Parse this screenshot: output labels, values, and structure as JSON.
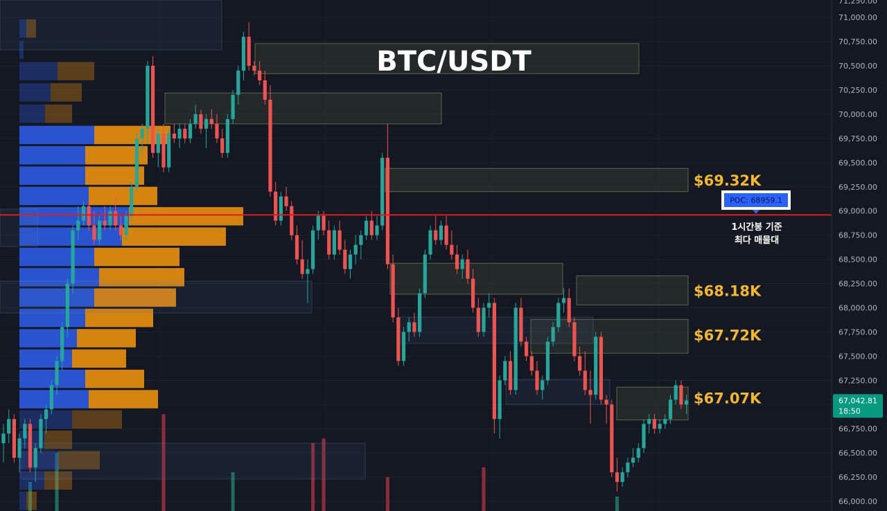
{
  "chart_data": {
    "type": "candlestick",
    "title": "BTC/USDT",
    "ylim": [
      65900,
      71180
    ],
    "price_axis": {
      "ticks": [
        "71,000.00",
        "70,750.00",
        "70,500.00",
        "70,250.00",
        "70,000.00",
        "69,750.00",
        "69,500.00",
        "69,250.00",
        "69,000.00",
        "68,750.00",
        "68,500.00",
        "68,250.00",
        "68,000.00",
        "67,750.00",
        "67,500.00",
        "67,250.00",
        "67,000.00",
        "66,750.00",
        "66,500.00",
        "66,250.00",
        "66,000.00"
      ],
      "tick_values": [
        71000,
        70750,
        70500,
        70250,
        70000,
        69750,
        69500,
        69250,
        69000,
        68750,
        68500,
        68250,
        68000,
        67750,
        67500,
        67250,
        67000,
        66750,
        66500,
        66250,
        66000
      ],
      "top_partial_tick": "71,250.00"
    },
    "current_price": {
      "price": "67,042.81",
      "countdown": "18:50",
      "value": 67042.81,
      "color": "#089981"
    },
    "poc": {
      "label": "POC: 68959.1",
      "value": 68959.1,
      "color": "#2962ff"
    },
    "poc_note": [
      "1시간봉 기준",
      "최다 매물대"
    ],
    "level_labels": [
      {
        "text": "$69.32K",
        "value": 69320
      },
      {
        "text": "$68.18K",
        "value": 68180
      },
      {
        "text": "$67.72K",
        "value": 67720
      },
      {
        "text": "$67.07K",
        "value": 67070
      }
    ],
    "resistance_zones": [
      {
        "name": "zone-70-6k",
        "top": 70730,
        "bottom": 70420
      },
      {
        "name": "zone-70-1k",
        "top": 70220,
        "bottom": 69900
      },
      {
        "name": "zone-69-3k",
        "top": 69440,
        "bottom": 69200
      },
      {
        "name": "zone-68-4k",
        "top": 68460,
        "bottom": 68140
      },
      {
        "name": "zone-68-2k",
        "top": 68330,
        "bottom": 68030
      },
      {
        "name": "zone-67-8k",
        "top": 67880,
        "bottom": 67530
      },
      {
        "name": "zone-67-1k",
        "top": 67180,
        "bottom": 66840
      }
    ],
    "volume_profile": {
      "buy_color": "#2b57d9",
      "sell_color": "#e08a10",
      "rows": [
        {
          "top": 70980,
          "bottom": 70780,
          "buy": 10,
          "sell": 14
        },
        {
          "top": 70760,
          "bottom": 70560,
          "buy": 6,
          "sell": 0
        },
        {
          "top": 70540,
          "bottom": 70340,
          "buy": 55,
          "sell": 53
        },
        {
          "top": 70320,
          "bottom": 70120,
          "buy": 45,
          "sell": 45
        },
        {
          "top": 70100,
          "bottom": 69900,
          "buy": 37,
          "sell": 39
        },
        {
          "top": 69880,
          "bottom": 69680,
          "buy": 108,
          "sell": 110
        },
        {
          "top": 69670,
          "bottom": 69470,
          "buy": 95,
          "sell": 90
        },
        {
          "top": 69460,
          "bottom": 69260,
          "buy": 95,
          "sell": 85
        },
        {
          "top": 69250,
          "bottom": 69050,
          "buy": 100,
          "sell": 99
        },
        {
          "top": 69040,
          "bottom": 68840,
          "buy": 158,
          "sell": 165
        },
        {
          "top": 68830,
          "bottom": 68630,
          "buy": 148,
          "sell": 150
        },
        {
          "top": 68620,
          "bottom": 68420,
          "buy": 108,
          "sell": 123
        },
        {
          "top": 68410,
          "bottom": 68210,
          "buy": 115,
          "sell": 123
        },
        {
          "top": 68200,
          "bottom": 68000,
          "buy": 108,
          "sell": 118
        },
        {
          "top": 67990,
          "bottom": 67790,
          "buy": 95,
          "sell": 98
        },
        {
          "top": 67780,
          "bottom": 67580,
          "buy": 83,
          "sell": 85
        },
        {
          "top": 67570,
          "bottom": 67370,
          "buy": 76,
          "sell": 78
        },
        {
          "top": 67360,
          "bottom": 67160,
          "buy": 95,
          "sell": 85
        },
        {
          "top": 67150,
          "bottom": 66950,
          "buy": 100,
          "sell": 100
        },
        {
          "top": 66940,
          "bottom": 66740,
          "buy": 76,
          "sell": 72
        },
        {
          "top": 66730,
          "bottom": 66530,
          "buy": 36,
          "sell": 40
        },
        {
          "top": 66520,
          "bottom": 66320,
          "buy": 56,
          "sell": 60
        },
        {
          "top": 66310,
          "bottom": 66110,
          "buy": 36,
          "sell": 40
        },
        {
          "top": 66100,
          "bottom": 65900,
          "buy": 10,
          "sell": 15
        }
      ]
    },
    "candles": [
      [
        66600,
        66800,
        66400,
        66700
      ],
      [
        66700,
        66950,
        66600,
        66850
      ],
      [
        66850,
        66900,
        66400,
        66450
      ],
      [
        66450,
        66700,
        66300,
        66650
      ],
      [
        66650,
        66850,
        66550,
        66800
      ],
      [
        66800,
        66850,
        66300,
        66350
      ],
      [
        66350,
        66600,
        66200,
        66550
      ],
      [
        66550,
        66900,
        66500,
        66850
      ],
      [
        66850,
        67000,
        66700,
        66950
      ],
      [
        66950,
        67250,
        66900,
        67200
      ],
      [
        67200,
        67500,
        67100,
        67450
      ],
      [
        67450,
        67850,
        67350,
        67800
      ],
      [
        67800,
        68300,
        67700,
        68250
      ],
      [
        68250,
        68850,
        68150,
        68800
      ],
      [
        68800,
        69050,
        68700,
        68900
      ],
      [
        68900,
        69100,
        68850,
        69050
      ],
      [
        69050,
        69100,
        68800,
        68850
      ],
      [
        68850,
        69000,
        68650,
        68700
      ],
      [
        68700,
        68950,
        68650,
        68900
      ],
      [
        68900,
        69050,
        68800,
        68850
      ],
      [
        68850,
        69050,
        68800,
        69000
      ],
      [
        69000,
        69150,
        68800,
        68850
      ],
      [
        68850,
        68950,
        68700,
        68750
      ],
      [
        68750,
        69000,
        68700,
        68950
      ],
      [
        68950,
        69300,
        68900,
        69250
      ],
      [
        69250,
        69800,
        69200,
        69750
      ],
      [
        69750,
        69900,
        69600,
        69850
      ],
      [
        69850,
        70550,
        69700,
        70500
      ],
      [
        70500,
        70600,
        69550,
        69600
      ],
      [
        69600,
        69850,
        69450,
        69800
      ],
      [
        69800,
        69900,
        69400,
        69450
      ],
      [
        69450,
        69850,
        69400,
        69800
      ],
      [
        69800,
        69900,
        69700,
        69750
      ],
      [
        69750,
        69900,
        69650,
        69850
      ],
      [
        69850,
        69900,
        69700,
        69750
      ],
      [
        69750,
        69950,
        69700,
        69900
      ],
      [
        69900,
        70100,
        69850,
        70000
      ],
      [
        70000,
        70050,
        69800,
        69850
      ],
      [
        69850,
        70000,
        69650,
        69950
      ],
      [
        69950,
        70050,
        69850,
        69900
      ],
      [
        69900,
        70000,
        69700,
        69750
      ],
      [
        69750,
        69850,
        69550,
        69600
      ],
      [
        69600,
        70000,
        69550,
        69950
      ],
      [
        69950,
        70250,
        69900,
        70200
      ],
      [
        70200,
        70500,
        70100,
        70450
      ],
      [
        70450,
        70850,
        70350,
        70800
      ],
      [
        70800,
        70950,
        70450,
        70500
      ],
      [
        70500,
        70550,
        70400,
        70450
      ],
      [
        70450,
        70550,
        70300,
        70350
      ],
      [
        70350,
        70450,
        70100,
        70150
      ],
      [
        70150,
        70300,
        69150,
        69200
      ],
      [
        69200,
        69300,
        68850,
        68900
      ],
      [
        68900,
        69200,
        68850,
        69150
      ],
      [
        69150,
        69250,
        69000,
        69050
      ],
      [
        69050,
        69100,
        68700,
        68750
      ],
      [
        68750,
        68850,
        68450,
        68500
      ],
      [
        68500,
        68700,
        68300,
        68350
      ],
      [
        68350,
        68500,
        68050,
        68400
      ],
      [
        68400,
        68850,
        68350,
        68800
      ],
      [
        68800,
        69000,
        68700,
        68950
      ],
      [
        68950,
        69000,
        68750,
        68800
      ],
      [
        68800,
        68900,
        68500,
        68550
      ],
      [
        68550,
        68850,
        68500,
        68800
      ],
      [
        68800,
        68900,
        68550,
        68600
      ],
      [
        68600,
        68700,
        68350,
        68400
      ],
      [
        68400,
        68600,
        68300,
        68550
      ],
      [
        68550,
        68750,
        68450,
        68650
      ],
      [
        68650,
        68800,
        68500,
        68750
      ],
      [
        68750,
        68950,
        68700,
        68900
      ],
      [
        68900,
        69000,
        68700,
        68750
      ],
      [
        68750,
        68950,
        68700,
        68850
      ],
      [
        68850,
        69600,
        68800,
        69550
      ],
      [
        69550,
        69900,
        68400,
        68450
      ],
      [
        68450,
        68550,
        67850,
        67900
      ],
      [
        67900,
        68000,
        67400,
        67450
      ],
      [
        67450,
        67800,
        67400,
        67750
      ],
      [
        67750,
        67900,
        67650,
        67850
      ],
      [
        67850,
        67950,
        67700,
        67750
      ],
      [
        67750,
        68200,
        67700,
        68150
      ],
      [
        68150,
        68600,
        68100,
        68550
      ],
      [
        68550,
        68850,
        68500,
        68800
      ],
      [
        68800,
        68950,
        68650,
        68700
      ],
      [
        68700,
        68900,
        68650,
        68850
      ],
      [
        68850,
        68950,
        68600,
        68650
      ],
      [
        68650,
        68800,
        68500,
        68550
      ],
      [
        68550,
        68650,
        68350,
        68400
      ],
      [
        68400,
        68550,
        68300,
        68500
      ],
      [
        68500,
        68600,
        68250,
        68300
      ],
      [
        68300,
        68400,
        67950,
        68000
      ],
      [
        68000,
        68100,
        67700,
        67750
      ],
      [
        67750,
        68050,
        67700,
        68000
      ],
      [
        68000,
        68150,
        67900,
        68050
      ],
      [
        68050,
        68100,
        66700,
        66850
      ],
      [
        66850,
        67300,
        66650,
        67250
      ],
      [
        67250,
        67500,
        67200,
        67450
      ],
      [
        67450,
        67550,
        67100,
        67150
      ],
      [
        67150,
        68050,
        67100,
        68000
      ],
      [
        68000,
        68100,
        67600,
        67650
      ],
      [
        67650,
        67700,
        67450,
        67500
      ],
      [
        67500,
        67550,
        67300,
        67350
      ],
      [
        67350,
        67450,
        67100,
        67150
      ],
      [
        67150,
        67300,
        67050,
        67250
      ],
      [
        67250,
        67700,
        67200,
        67650
      ],
      [
        67650,
        67850,
        67600,
        67800
      ],
      [
        67800,
        68100,
        67750,
        68050
      ],
      [
        68050,
        68200,
        67950,
        68100
      ],
      [
        68100,
        68200,
        67800,
        67850
      ],
      [
        67850,
        67900,
        67450,
        67500
      ],
      [
        67500,
        67600,
        67300,
        67350
      ],
      [
        67350,
        67550,
        67100,
        67150
      ],
      [
        67150,
        67350,
        66800,
        67100
      ],
      [
        67100,
        67750,
        67050,
        67700
      ],
      [
        67700,
        67750,
        67000,
        67050
      ],
      [
        67050,
        67100,
        66800,
        67000
      ],
      [
        67000,
        67050,
        66250,
        66300
      ],
      [
        66300,
        66450,
        66100,
        66200
      ],
      [
        66200,
        66350,
        66150,
        66300
      ],
      [
        66300,
        66450,
        66250,
        66400
      ],
      [
        66400,
        66550,
        66350,
        66450
      ],
      [
        66450,
        66600,
        66400,
        66550
      ],
      [
        66550,
        66850,
        66500,
        66800
      ],
      [
        66800,
        66900,
        66700,
        66850
      ],
      [
        66850,
        66900,
        66700,
        66750
      ],
      [
        66750,
        66850,
        66700,
        66800
      ],
      [
        66800,
        66900,
        66750,
        66850
      ],
      [
        66850,
        67100,
        66800,
        67050
      ],
      [
        67050,
        67250,
        67000,
        67200
      ],
      [
        67200,
        67250,
        66950,
        67000
      ],
      [
        67000,
        67100,
        66900,
        67043
      ]
    ],
    "volume_bars": [
      {
        "i": 5,
        "v": 0.3,
        "up": true
      },
      {
        "i": 10,
        "v": 0.6,
        "up": true
      },
      {
        "i": 30,
        "v": 1.0,
        "up": false
      },
      {
        "i": 43,
        "v": 0.4,
        "up": true
      },
      {
        "i": 58,
        "v": 0.7,
        "up": false
      },
      {
        "i": 60,
        "v": 0.75,
        "up": false
      },
      {
        "i": 72,
        "v": 0.35,
        "up": false
      },
      {
        "i": 90,
        "v": 0.45,
        "up": false
      },
      {
        "i": 115,
        "v": 0.15,
        "up": true
      }
    ]
  }
}
